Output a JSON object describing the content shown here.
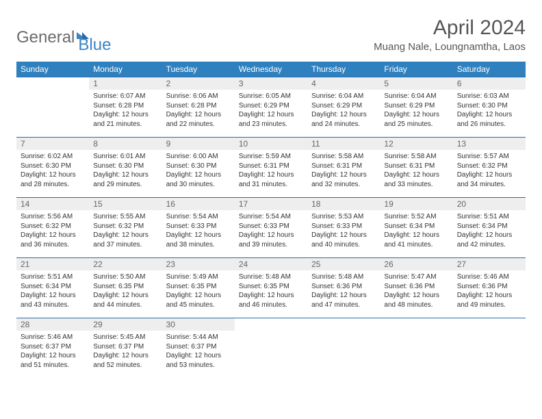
{
  "brand": {
    "part1": "General",
    "part2": "Blue"
  },
  "title": "April 2024",
  "location": "Muang Nale, Loungnamtha, Laos",
  "day_headers": [
    "Sunday",
    "Monday",
    "Tuesday",
    "Wednesday",
    "Thursday",
    "Friday",
    "Saturday"
  ],
  "colors": {
    "header_bg": "#2f80bf",
    "header_text": "#ffffff",
    "rule": "#2a6aa8",
    "daynum_bg": "#eeeeee",
    "body_text": "#333333",
    "brand_gray": "#6a6a6a",
    "brand_blue": "#3b84c4"
  },
  "weeks": [
    [
      {
        "n": "",
        "l1": "",
        "l2": "",
        "l3": "",
        "l4": ""
      },
      {
        "n": "1",
        "l1": "Sunrise: 6:07 AM",
        "l2": "Sunset: 6:28 PM",
        "l3": "Daylight: 12 hours",
        "l4": "and 21 minutes."
      },
      {
        "n": "2",
        "l1": "Sunrise: 6:06 AM",
        "l2": "Sunset: 6:28 PM",
        "l3": "Daylight: 12 hours",
        "l4": "and 22 minutes."
      },
      {
        "n": "3",
        "l1": "Sunrise: 6:05 AM",
        "l2": "Sunset: 6:29 PM",
        "l3": "Daylight: 12 hours",
        "l4": "and 23 minutes."
      },
      {
        "n": "4",
        "l1": "Sunrise: 6:04 AM",
        "l2": "Sunset: 6:29 PM",
        "l3": "Daylight: 12 hours",
        "l4": "and 24 minutes."
      },
      {
        "n": "5",
        "l1": "Sunrise: 6:04 AM",
        "l2": "Sunset: 6:29 PM",
        "l3": "Daylight: 12 hours",
        "l4": "and 25 minutes."
      },
      {
        "n": "6",
        "l1": "Sunrise: 6:03 AM",
        "l2": "Sunset: 6:30 PM",
        "l3": "Daylight: 12 hours",
        "l4": "and 26 minutes."
      }
    ],
    [
      {
        "n": "7",
        "l1": "Sunrise: 6:02 AM",
        "l2": "Sunset: 6:30 PM",
        "l3": "Daylight: 12 hours",
        "l4": "and 28 minutes."
      },
      {
        "n": "8",
        "l1": "Sunrise: 6:01 AM",
        "l2": "Sunset: 6:30 PM",
        "l3": "Daylight: 12 hours",
        "l4": "and 29 minutes."
      },
      {
        "n": "9",
        "l1": "Sunrise: 6:00 AM",
        "l2": "Sunset: 6:30 PM",
        "l3": "Daylight: 12 hours",
        "l4": "and 30 minutes."
      },
      {
        "n": "10",
        "l1": "Sunrise: 5:59 AM",
        "l2": "Sunset: 6:31 PM",
        "l3": "Daylight: 12 hours",
        "l4": "and 31 minutes."
      },
      {
        "n": "11",
        "l1": "Sunrise: 5:58 AM",
        "l2": "Sunset: 6:31 PM",
        "l3": "Daylight: 12 hours",
        "l4": "and 32 minutes."
      },
      {
        "n": "12",
        "l1": "Sunrise: 5:58 AM",
        "l2": "Sunset: 6:31 PM",
        "l3": "Daylight: 12 hours",
        "l4": "and 33 minutes."
      },
      {
        "n": "13",
        "l1": "Sunrise: 5:57 AM",
        "l2": "Sunset: 6:32 PM",
        "l3": "Daylight: 12 hours",
        "l4": "and 34 minutes."
      }
    ],
    [
      {
        "n": "14",
        "l1": "Sunrise: 5:56 AM",
        "l2": "Sunset: 6:32 PM",
        "l3": "Daylight: 12 hours",
        "l4": "and 36 minutes."
      },
      {
        "n": "15",
        "l1": "Sunrise: 5:55 AM",
        "l2": "Sunset: 6:32 PM",
        "l3": "Daylight: 12 hours",
        "l4": "and 37 minutes."
      },
      {
        "n": "16",
        "l1": "Sunrise: 5:54 AM",
        "l2": "Sunset: 6:33 PM",
        "l3": "Daylight: 12 hours",
        "l4": "and 38 minutes."
      },
      {
        "n": "17",
        "l1": "Sunrise: 5:54 AM",
        "l2": "Sunset: 6:33 PM",
        "l3": "Daylight: 12 hours",
        "l4": "and 39 minutes."
      },
      {
        "n": "18",
        "l1": "Sunrise: 5:53 AM",
        "l2": "Sunset: 6:33 PM",
        "l3": "Daylight: 12 hours",
        "l4": "and 40 minutes."
      },
      {
        "n": "19",
        "l1": "Sunrise: 5:52 AM",
        "l2": "Sunset: 6:34 PM",
        "l3": "Daylight: 12 hours",
        "l4": "and 41 minutes."
      },
      {
        "n": "20",
        "l1": "Sunrise: 5:51 AM",
        "l2": "Sunset: 6:34 PM",
        "l3": "Daylight: 12 hours",
        "l4": "and 42 minutes."
      }
    ],
    [
      {
        "n": "21",
        "l1": "Sunrise: 5:51 AM",
        "l2": "Sunset: 6:34 PM",
        "l3": "Daylight: 12 hours",
        "l4": "and 43 minutes."
      },
      {
        "n": "22",
        "l1": "Sunrise: 5:50 AM",
        "l2": "Sunset: 6:35 PM",
        "l3": "Daylight: 12 hours",
        "l4": "and 44 minutes."
      },
      {
        "n": "23",
        "l1": "Sunrise: 5:49 AM",
        "l2": "Sunset: 6:35 PM",
        "l3": "Daylight: 12 hours",
        "l4": "and 45 minutes."
      },
      {
        "n": "24",
        "l1": "Sunrise: 5:48 AM",
        "l2": "Sunset: 6:35 PM",
        "l3": "Daylight: 12 hours",
        "l4": "and 46 minutes."
      },
      {
        "n": "25",
        "l1": "Sunrise: 5:48 AM",
        "l2": "Sunset: 6:36 PM",
        "l3": "Daylight: 12 hours",
        "l4": "and 47 minutes."
      },
      {
        "n": "26",
        "l1": "Sunrise: 5:47 AM",
        "l2": "Sunset: 6:36 PM",
        "l3": "Daylight: 12 hours",
        "l4": "and 48 minutes."
      },
      {
        "n": "27",
        "l1": "Sunrise: 5:46 AM",
        "l2": "Sunset: 6:36 PM",
        "l3": "Daylight: 12 hours",
        "l4": "and 49 minutes."
      }
    ],
    [
      {
        "n": "28",
        "l1": "Sunrise: 5:46 AM",
        "l2": "Sunset: 6:37 PM",
        "l3": "Daylight: 12 hours",
        "l4": "and 51 minutes."
      },
      {
        "n": "29",
        "l1": "Sunrise: 5:45 AM",
        "l2": "Sunset: 6:37 PM",
        "l3": "Daylight: 12 hours",
        "l4": "and 52 minutes."
      },
      {
        "n": "30",
        "l1": "Sunrise: 5:44 AM",
        "l2": "Sunset: 6:37 PM",
        "l3": "Daylight: 12 hours",
        "l4": "and 53 minutes."
      },
      {
        "n": "",
        "l1": "",
        "l2": "",
        "l3": "",
        "l4": ""
      },
      {
        "n": "",
        "l1": "",
        "l2": "",
        "l3": "",
        "l4": ""
      },
      {
        "n": "",
        "l1": "",
        "l2": "",
        "l3": "",
        "l4": ""
      },
      {
        "n": "",
        "l1": "",
        "l2": "",
        "l3": "",
        "l4": ""
      }
    ]
  ]
}
